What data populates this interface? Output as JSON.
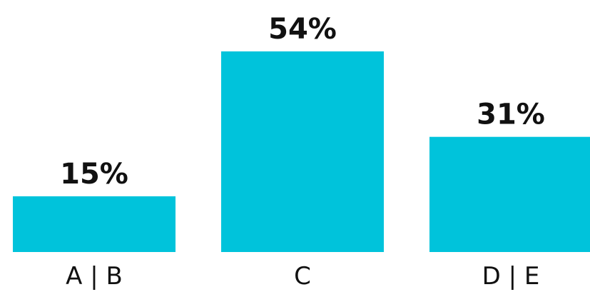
{
  "chart_data": {
    "type": "bar",
    "categories": [
      "A | B",
      "C",
      "D | E"
    ],
    "values": [
      15,
      54,
      31
    ],
    "data_labels": [
      "15%",
      "54%",
      "31%"
    ],
    "title": "",
    "xlabel": "",
    "ylabel": "",
    "ylim": [
      0,
      54
    ],
    "grid": false,
    "legend": "none",
    "colors": {
      "bar": "#00c3db",
      "text": "#111111",
      "background": "#ffffff"
    }
  }
}
